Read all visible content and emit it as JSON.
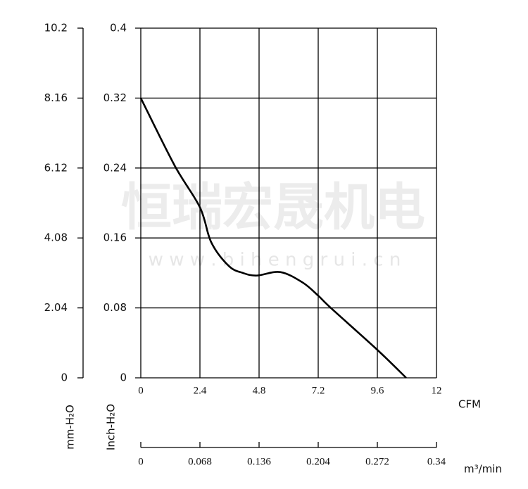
{
  "chart_data": {
    "type": "line",
    "x": [
      0,
      1.37,
      2.4,
      2.86,
      3.57,
      4.14,
      4.71,
      5.66,
      6.57,
      7.2,
      7.71,
      9.6,
      10.77
    ],
    "series": [
      {
        "color": "#000000",
        "values": [
          0.32,
          0.243,
          0.195,
          0.155,
          0.128,
          0.12,
          0.117,
          0.121,
          0.109,
          0.094,
          0.08,
          0.032,
          0
        ]
      }
    ],
    "xlim": [
      0,
      12
    ],
    "xticks": [
      0,
      2.4,
      4.8,
      7.2,
      9.6,
      12
    ],
    "ylim": [
      0,
      0.4
    ],
    "yticks": [
      0,
      0.08,
      0.16,
      0.24,
      0.32,
      0.4
    ],
    "y2lim": [
      0,
      10.2
    ],
    "y2ticks": [
      0,
      2.04,
      4.08,
      6.12,
      8.16,
      10.2
    ],
    "x2lim": [
      0,
      0.34
    ],
    "x2ticks": [
      0,
      0.068,
      0.136,
      0.204,
      0.272,
      0.34
    ],
    "x_label": "CFM",
    "x2_label": "m³/min",
    "y_label": "Inch-H₂O",
    "y2_label": "mm-H₂O",
    "grid": true,
    "watermark": "恒瑞宏晟机电",
    "watermark_url": "w w w . b i h e n g r u i . c n"
  }
}
